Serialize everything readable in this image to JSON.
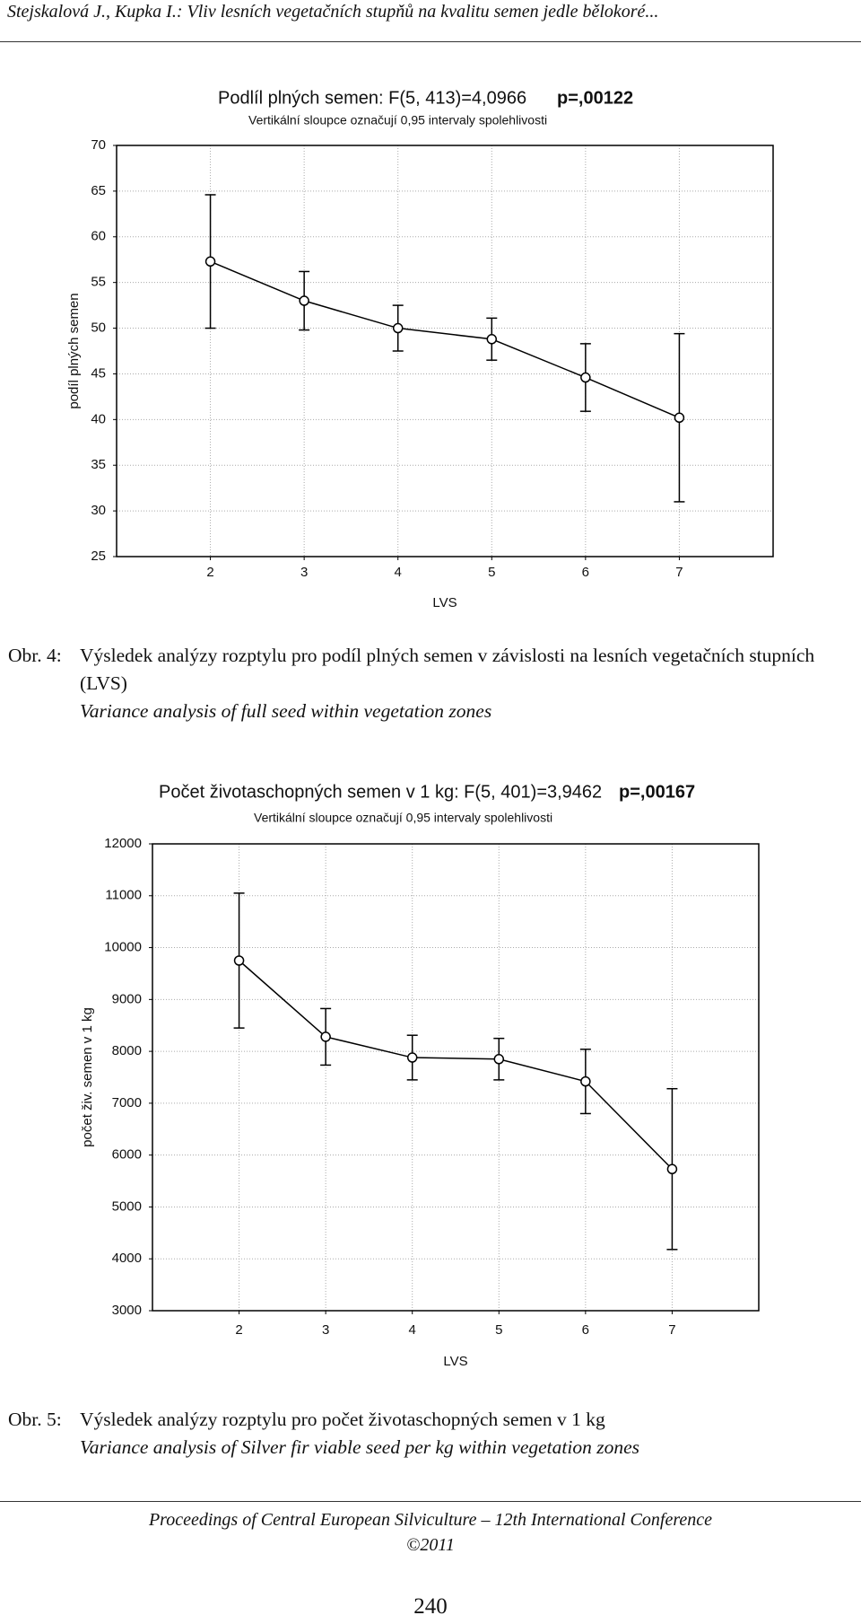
{
  "header": {
    "text": "Stejskalová J., Kupka I.: Vliv lesních vegetačních stupňů na kvalitu semen jedle bělokoré..."
  },
  "chart_data": [
    {
      "type": "line",
      "title": "Podlíl plných semen: F(5, 413)=4,0966",
      "p_value": "p=,00122",
      "subtitle": "Vertikální sloupce označují 0,95 intervaly spolehlivosti",
      "x_label": "LVS",
      "y_label": "podíl plných semen",
      "x": [
        2,
        3,
        4,
        5,
        6,
        7
      ],
      "series": [
        {
          "color": "#000000",
          "values": [
            57.3,
            53.0,
            50.0,
            48.8,
            44.6,
            40.2
          ],
          "errors": [
            7.3,
            3.2,
            2.5,
            2.3,
            3.7,
            9.2
          ]
        }
      ],
      "xlim": [
        1,
        8
      ],
      "xticks": [
        2,
        3,
        4,
        5,
        6,
        7
      ],
      "ylim": [
        25,
        70
      ],
      "yticks": [
        25,
        30,
        35,
        40,
        45,
        50,
        55,
        60,
        65,
        70
      ],
      "grid": true
    },
    {
      "type": "line",
      "title": "Počet životaschopných semen v 1 kg: F(5, 401)=3,9462",
      "p_value": "p=,00167",
      "subtitle": "Vertikální sloupce označují 0,95 intervaly spolehlivosti",
      "x_label": "LVS",
      "y_label": "počet živ. semen v 1 kg",
      "x": [
        2,
        3,
        4,
        5,
        6,
        7
      ],
      "series": [
        {
          "color": "#000000",
          "values": [
            9750,
            8280,
            7880,
            7850,
            7420,
            5730
          ],
          "errors": [
            1300,
            545,
            430,
            400,
            620,
            1550
          ]
        }
      ],
      "xlim": [
        1,
        8
      ],
      "xticks": [
        2,
        3,
        4,
        5,
        6,
        7
      ],
      "ylim": [
        3000,
        12000
      ],
      "yticks": [
        3000,
        4000,
        5000,
        6000,
        7000,
        8000,
        9000,
        10000,
        11000,
        12000
      ],
      "grid": true
    }
  ],
  "captions": [
    {
      "label": "Obr. 4:",
      "text": "Výsledek analýzy rozptylu pro podíl plných semen v závislosti na lesních vegetačních stupních (LVS)",
      "text_en": "Variance analysis of full seed within vegetation zones"
    },
    {
      "label": "Obr. 5:",
      "text": "Výsledek analýzy rozptylu pro počet životaschopných semen v 1 kg",
      "text_en": "Variance analysis of Silver fir viable seed per kg within vegetation zones"
    }
  ],
  "footer": {
    "text": "Proceedings of Central European Silviculture – 12th International Conference",
    "copyright": "©2011",
    "page": "240"
  }
}
